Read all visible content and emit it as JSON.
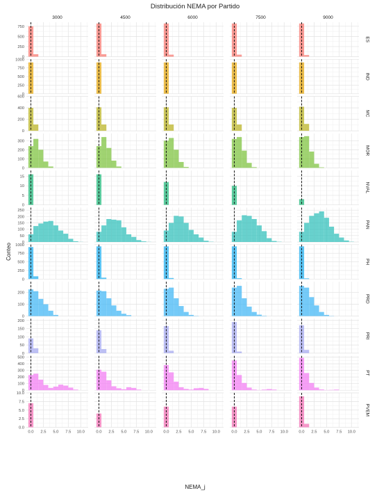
{
  "chart_data": {
    "type": "bar",
    "title": "Distribución NEMA por Partido",
    "xlabel": "NEMA_j",
    "ylabel": "Conteo",
    "columns": [
      "3000",
      "4500",
      "6000",
      "7500",
      "9000"
    ],
    "x_ticks": [
      "0.0",
      "2.5",
      "5.0",
      "7.5",
      "10.0"
    ],
    "xlim": [
      -0.9,
      11.5
    ],
    "bin_width": 1.0,
    "bin_starts": [
      -0.5,
      0.5,
      1.5,
      2.5,
      3.5,
      4.5,
      5.5,
      6.5,
      7.5,
      8.5,
      9.5
    ],
    "reference_line_x": 0.0,
    "grid": true,
    "facets": [
      {
        "party": "ES",
        "color": "#F8766D",
        "ylim": [
          0,
          850
        ],
        "ticks": [
          "0",
          "250",
          "500",
          "750"
        ],
        "counts": [
          [
            750,
            60,
            0,
            0,
            0,
            0,
            0,
            0,
            0,
            0,
            0
          ],
          [
            820,
            60,
            0,
            0,
            0,
            0,
            0,
            0,
            0,
            0,
            0
          ],
          [
            820,
            50,
            0,
            0,
            0,
            0,
            0,
            0,
            0,
            0,
            0
          ],
          [
            820,
            50,
            0,
            0,
            0,
            0,
            0,
            0,
            0,
            0,
            0
          ],
          [
            820,
            40,
            0,
            0,
            0,
            0,
            0,
            0,
            0,
            0,
            0
          ]
        ]
      },
      {
        "party": "IND",
        "color": "#E5A50A",
        "ylim": [
          0,
          1000
        ],
        "ticks": [
          "0",
          "250",
          "500",
          "750",
          "1000"
        ],
        "counts": [
          [
            910,
            0,
            0,
            0,
            0,
            0,
            0,
            0,
            0,
            0,
            0
          ],
          [
            910,
            0,
            0,
            0,
            0,
            0,
            0,
            0,
            0,
            0,
            0
          ],
          [
            910,
            0,
            0,
            0,
            0,
            0,
            0,
            0,
            0,
            0,
            0
          ],
          [
            910,
            0,
            0,
            0,
            0,
            0,
            0,
            0,
            0,
            0,
            0
          ],
          [
            910,
            0,
            0,
            0,
            0,
            0,
            0,
            0,
            0,
            0,
            0
          ]
        ]
      },
      {
        "party": "MC",
        "color": "#B8B21E",
        "ylim": [
          0,
          600
        ],
        "ticks": [
          "0",
          "200",
          "400",
          "600"
        ],
        "counts": [
          [
            400,
            110,
            0,
            0,
            0,
            0,
            0,
            0,
            0,
            0,
            0
          ],
          [
            410,
            110,
            0,
            0,
            0,
            0,
            0,
            0,
            0,
            0,
            0
          ],
          [
            410,
            110,
            0,
            0,
            0,
            0,
            0,
            0,
            0,
            0,
            0
          ],
          [
            400,
            110,
            0,
            0,
            0,
            0,
            0,
            0,
            0,
            0,
            0
          ],
          [
            420,
            120,
            0,
            0,
            0,
            0,
            0,
            0,
            0,
            0,
            0
          ]
        ]
      },
      {
        "party": "MOR",
        "color": "#7CC23A",
        "ylim": [
          0,
          380
        ],
        "ticks": [
          "0",
          "100",
          "200",
          "300"
        ],
        "counts": [
          [
            240,
            320,
            200,
            70,
            15,
            0,
            0,
            0,
            0,
            0,
            0
          ],
          [
            240,
            340,
            220,
            80,
            15,
            0,
            0,
            0,
            0,
            0,
            0
          ],
          [
            300,
            330,
            200,
            65,
            10,
            0,
            0,
            0,
            0,
            0,
            0
          ],
          [
            320,
            340,
            190,
            55,
            8,
            0,
            0,
            0,
            0,
            0,
            0
          ],
          [
            340,
            350,
            180,
            45,
            6,
            0,
            0,
            0,
            0,
            0,
            0
          ]
        ]
      },
      {
        "party": "NVAL",
        "color": "#1EB87A",
        "ylim": [
          0,
          18
        ],
        "ticks": [
          "0",
          "5",
          "10",
          "15"
        ],
        "counts": [
          [
            16,
            0,
            0,
            0,
            0,
            0,
            0,
            0,
            0,
            0,
            0
          ],
          [
            16,
            0,
            0,
            0,
            0,
            0,
            0,
            0,
            0,
            0,
            0
          ],
          [
            12,
            0,
            0,
            0,
            0,
            0,
            0,
            0,
            0,
            0,
            0
          ],
          [
            10,
            0,
            0,
            0,
            0,
            0,
            0,
            0,
            0,
            0,
            0
          ],
          [
            3,
            0,
            0,
            0,
            0,
            0,
            0,
            0,
            0,
            0,
            0
          ]
        ]
      },
      {
        "party": "PAN",
        "color": "#2EBFBA",
        "ylim": [
          0,
          270
        ],
        "ticks": [
          "0",
          "50",
          "100",
          "150",
          "200",
          "250"
        ],
        "counts": [
          [
            60,
            125,
            145,
            160,
            165,
            130,
            90,
            65,
            25,
            6,
            1
          ],
          [
            80,
            130,
            180,
            175,
            170,
            115,
            60,
            40,
            15,
            5,
            1
          ],
          [
            90,
            150,
            205,
            200,
            150,
            95,
            60,
            35,
            10,
            2,
            0
          ],
          [
            80,
            170,
            210,
            205,
            180,
            130,
            85,
            30,
            8,
            2,
            0
          ],
          [
            80,
            150,
            205,
            225,
            240,
            190,
            120,
            65,
            35,
            12,
            2
          ]
        ]
      },
      {
        "party": "PH",
        "color": "#1EAEF0",
        "ylim": [
          0,
          1000
        ],
        "ticks": [
          "0",
          "250",
          "500",
          "750",
          "1000"
        ],
        "counts": [
          [
            930,
            80,
            0,
            0,
            0,
            0,
            0,
            0,
            0,
            0,
            0
          ],
          [
            950,
            40,
            0,
            0,
            0,
            0,
            0,
            0,
            0,
            0,
            0
          ],
          [
            950,
            30,
            0,
            0,
            0,
            0,
            0,
            0,
            0,
            0,
            0
          ],
          [
            950,
            25,
            0,
            0,
            0,
            0,
            0,
            0,
            0,
            0,
            0
          ],
          [
            950,
            20,
            0,
            0,
            0,
            0,
            0,
            0,
            0,
            0,
            0
          ]
        ]
      },
      {
        "party": "PRD",
        "color": "#3FB6F5",
        "ylim": [
          0,
          290
        ],
        "ticks": [
          "0",
          "100",
          "200"
        ],
        "counts": [
          [
            225,
            210,
            145,
            100,
            45,
            10,
            0,
            0,
            0,
            0,
            0
          ],
          [
            215,
            210,
            150,
            90,
            45,
            20,
            8,
            0,
            0,
            0,
            0
          ],
          [
            230,
            240,
            150,
            85,
            35,
            10,
            2,
            0,
            0,
            0,
            0
          ],
          [
            240,
            255,
            150,
            80,
            35,
            12,
            3,
            0,
            0,
            0,
            0
          ],
          [
            255,
            240,
            160,
            90,
            35,
            10,
            2,
            0,
            0,
            0,
            0
          ]
        ]
      },
      {
        "party": "PRI",
        "color": "#A4A8F0",
        "ylim": [
          0,
          210
        ],
        "ticks": [
          "0",
          "50",
          "100",
          "150",
          "200"
        ],
        "counts": [
          [
            90,
            30,
            0,
            0,
            0,
            0,
            0,
            0,
            0,
            0,
            0
          ],
          [
            140,
            25,
            0,
            0,
            0,
            0,
            0,
            0,
            0,
            0,
            0
          ],
          [
            165,
            15,
            0,
            0,
            0,
            0,
            0,
            0,
            0,
            0,
            0
          ],
          [
            190,
            10,
            0,
            0,
            0,
            0,
            0,
            0,
            0,
            0,
            0
          ],
          [
            170,
            20,
            0,
            0,
            0,
            0,
            0,
            0,
            0,
            0,
            0
          ]
        ]
      },
      {
        "party": "PT",
        "color": "#F27AF2",
        "ylim": [
          0,
          520
        ],
        "ticks": [
          "0",
          "100",
          "200",
          "300",
          "400",
          "500"
        ],
        "counts": [
          [
            230,
            250,
            160,
            80,
            35,
            55,
            85,
            70,
            40,
            10,
            0
          ],
          [
            310,
            280,
            150,
            60,
            30,
            15,
            45,
            35,
            10,
            0,
            0
          ],
          [
            380,
            270,
            130,
            45,
            20,
            10,
            30,
            35,
            20,
            0,
            0
          ],
          [
            450,
            230,
            110,
            40,
            10,
            3,
            10,
            18,
            10,
            0,
            0
          ],
          [
            490,
            260,
            110,
            40,
            12,
            3,
            5,
            10,
            0,
            0,
            0
          ]
        ]
      },
      {
        "party": "PVEM",
        "color": "#F36FB4",
        "ylim": [
          0,
          10
        ],
        "ticks": [
          "0.0",
          "2.5",
          "5.0",
          "7.5",
          "10.0"
        ],
        "counts": [
          [
            7,
            0,
            0,
            0,
            0,
            0,
            0,
            0,
            0,
            0,
            0
          ],
          [
            4,
            0,
            0,
            0,
            0,
            0,
            0,
            0,
            0,
            0,
            0
          ],
          [
            6,
            0,
            0,
            0,
            0,
            0,
            0,
            0,
            0,
            0,
            0
          ],
          [
            6,
            0,
            0,
            0,
            0,
            0,
            0,
            0,
            0,
            0,
            0
          ],
          [
            9,
            1,
            0,
            0,
            0,
            0,
            0,
            0,
            0,
            0,
            0
          ]
        ]
      }
    ]
  }
}
